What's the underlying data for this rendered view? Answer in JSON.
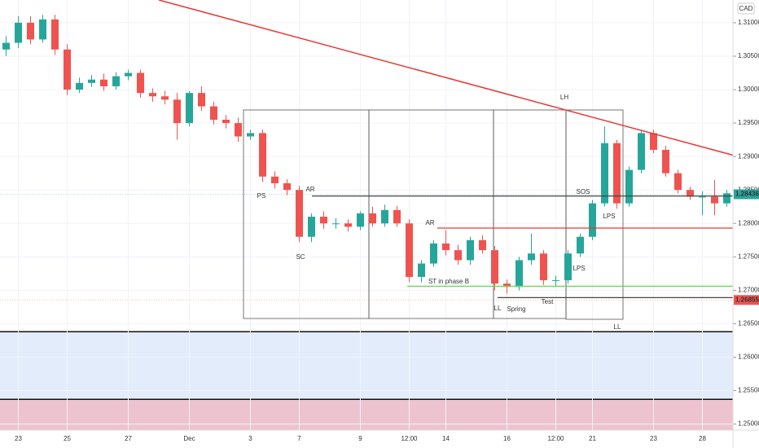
{
  "chart_data": {
    "type": "candlestick",
    "currency": "CAD",
    "categories": [
      null,
      "23",
      null,
      null,
      null,
      "25",
      null,
      null,
      null,
      null,
      "27",
      null,
      null,
      null,
      null,
      "Dec",
      null,
      null,
      null,
      null,
      "3",
      null,
      null,
      null,
      "7",
      null,
      null,
      null,
      null,
      "9",
      null,
      null,
      null,
      "12:00",
      null,
      null,
      "14",
      null,
      null,
      null,
      null,
      "16",
      null,
      null,
      null,
      "12:00",
      null,
      null,
      "21",
      null,
      null,
      null,
      null,
      "23",
      null,
      null,
      null,
      "28",
      null,
      null
    ],
    "open": [
      1.306,
      1.307,
      1.31,
      1.3075,
      1.3105,
      1.306,
      1.3,
      1.301,
      1.3015,
      1.3005,
      1.302,
      1.3025,
      1.2995,
      1.299,
      1.2985,
      1.295,
      1.2995,
      1.2975,
      1.2955,
      1.295,
      1.293,
      1.2935,
      1.287,
      1.286,
      1.285,
      1.278,
      1.281,
      1.28,
      1.28,
      1.2795,
      1.2815,
      1.28,
      1.282,
      1.28,
      1.272,
      1.274,
      1.277,
      1.276,
      1.2745,
      1.2775,
      1.276,
      1.271,
      1.2705,
      1.2745,
      1.2755,
      1.2715,
      1.2715,
      1.2755,
      1.278,
      1.283,
      1.292,
      1.283,
      1.288,
      1.2935,
      1.291,
      1.2875,
      1.285,
      1.284,
      1.284,
      1.283
    ],
    "high": [
      1.308,
      1.311,
      1.311,
      1.3112,
      1.3112,
      1.3068,
      1.3018,
      1.3022,
      1.3024,
      1.3026,
      1.303,
      1.303,
      1.3002,
      1.2998,
      1.2995,
      1.2998,
      1.3005,
      1.2982,
      1.2962,
      1.2958,
      1.294,
      1.294,
      1.2878,
      1.2866,
      1.2856,
      1.2815,
      1.2818,
      1.2808,
      1.2806,
      1.2818,
      1.2825,
      1.2828,
      1.2826,
      1.2806,
      1.2745,
      1.2775,
      1.279,
      1.2768,
      1.278,
      1.2782,
      1.2766,
      1.2716,
      1.275,
      1.2785,
      1.276,
      1.2722,
      1.276,
      1.2785,
      1.2835,
      1.2945,
      1.2925,
      1.2885,
      1.294,
      1.294,
      1.2916,
      1.288,
      1.2855,
      1.2848,
      1.2865,
      1.285
    ],
    "low": [
      1.305,
      1.3062,
      1.3068,
      1.307,
      1.3052,
      1.2992,
      1.2995,
      1.3004,
      1.2998,
      1.3,
      1.3014,
      1.2988,
      1.2982,
      1.2978,
      1.2925,
      1.2945,
      1.2968,
      1.2948,
      1.2942,
      1.2922,
      1.2925,
      1.2862,
      1.2852,
      1.2842,
      1.2772,
      1.2772,
      1.2792,
      1.2792,
      1.2788,
      1.279,
      1.2795,
      1.2795,
      1.2795,
      1.2712,
      1.2712,
      1.2735,
      1.2752,
      1.2738,
      1.2738,
      1.2755,
      1.27,
      1.2695,
      1.27,
      1.2738,
      1.2708,
      1.2705,
      1.271,
      1.275,
      1.2775,
      1.2825,
      1.2822,
      1.2825,
      1.2875,
      1.2905,
      1.287,
      1.2845,
      1.2835,
      1.2812,
      1.2812,
      1.2825
    ],
    "close": [
      1.307,
      1.31,
      1.3075,
      1.3105,
      1.306,
      1.3,
      1.301,
      1.3015,
      1.3005,
      1.302,
      1.3025,
      1.2995,
      1.299,
      1.2985,
      1.295,
      1.2995,
      1.2975,
      1.2955,
      1.295,
      1.293,
      1.2935,
      1.287,
      1.286,
      1.285,
      1.278,
      1.281,
      1.28,
      1.28,
      1.2795,
      1.2815,
      1.28,
      1.282,
      1.28,
      1.272,
      1.274,
      1.277,
      1.276,
      1.2745,
      1.2775,
      1.276,
      1.271,
      1.2705,
      1.2745,
      1.2755,
      1.2715,
      1.2715,
      1.2755,
      1.278,
      1.283,
      1.292,
      1.283,
      1.288,
      1.2935,
      1.291,
      1.2875,
      1.285,
      1.284,
      1.284,
      1.283,
      1.2845
    ],
    "up_color": "#26a69a",
    "down_color": "#ef5350",
    "ylim": [
      1.2491,
      1.3134
    ],
    "yticks": [
      {
        "value": 1.31,
        "label": "1.31000"
      },
      {
        "value": 1.305,
        "label": "1.30500"
      },
      {
        "value": 1.3,
        "label": "1.30000"
      },
      {
        "value": 1.295,
        "label": "1.29500"
      },
      {
        "value": 1.29,
        "label": "1.29000"
      },
      {
        "value": 1.285,
        "label": "1.28500"
      },
      {
        "value": 1.28,
        "label": "1.28000"
      },
      {
        "value": 1.275,
        "label": "1.27500"
      },
      {
        "value": 1.27,
        "label": "1.27000"
      },
      {
        "value": 1.265,
        "label": "1.26500"
      },
      {
        "value": 1.26,
        "label": "1.26000"
      },
      {
        "value": 1.255,
        "label": "1.25500"
      },
      {
        "value": 1.25,
        "label": "1.25000"
      }
    ],
    "trendline": {
      "start": 1.3134,
      "end": 1.2902,
      "color": "#e53935"
    },
    "levels": [
      {
        "value": 1.2841,
        "color": "#444444"
      },
      {
        "value": 1.2793,
        "color": "#e53935"
      },
      {
        "value": 1.2706,
        "color": "#66dd55"
      },
      {
        "value": 1.2689,
        "color": "#444444"
      }
    ],
    "zones": [
      {
        "top": 1.2638,
        "bottom": 1.2537,
        "color": "#e3ecfb"
      },
      {
        "top": 1.2537,
        "bottom": 1.2491,
        "color": "#ecc3cf"
      }
    ],
    "price_labels": [
      {
        "value": 1.28436,
        "label": "1.28436",
        "color": "#26a69a"
      },
      {
        "value": 1.26855,
        "label": "1.26855",
        "color": "#ef5350"
      }
    ],
    "annotations": [
      "PS",
      "AR",
      "SC",
      "AR",
      "ST in phase B",
      "LL",
      "Spring",
      "Test",
      "LH",
      "SOS",
      "LPS",
      "LPS",
      "LL"
    ]
  }
}
